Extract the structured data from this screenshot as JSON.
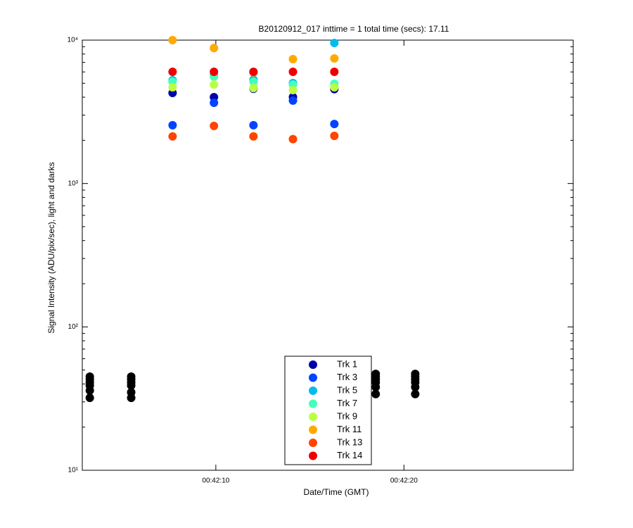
{
  "chart_data": {
    "type": "scatter",
    "title": "B20120912_017 inttime = 1 total time (secs): 17.11",
    "x_label": "Date/Time (GMT)",
    "y_label": "Signal Intensity (ADU/pix/sec), light and darks",
    "log_y": true,
    "xlim": [
      "00:42:02.9",
      "00:42:29.0"
    ],
    "xticks": [
      "00:42:10",
      "00:42:20"
    ],
    "ylim": [
      10,
      10000
    ],
    "yticks": [
      {
        "value": 10,
        "label": "10¹"
      },
      {
        "value": 100,
        "label": "10²"
      },
      {
        "value": 1000,
        "label": "10³"
      },
      {
        "value": 10000,
        "label": "10⁴"
      }
    ],
    "legend": "lower center",
    "series": [
      {
        "name": "Trk 1",
        "color": "#0000aa",
        "x": [
          "00:42:07.7",
          "00:42:09.9",
          "00:42:12.0",
          "00:42:14.1",
          "00:42:16.3"
        ],
        "values": [
          4285,
          4000,
          4580,
          4010,
          4550
        ]
      },
      {
        "name": "Trk 3",
        "color": "#0044ff",
        "x": [
          "00:42:07.7",
          "00:42:09.9",
          "00:42:12.0",
          "00:42:14.1",
          "00:42:16.3"
        ],
        "values": [
          2550,
          3655,
          2550,
          3785,
          2600
        ]
      },
      {
        "name": "Trk 5",
        "color": "#00bbee",
        "x": [
          "00:42:07.7",
          "00:42:09.9",
          "00:42:12.0",
          "00:42:14.1",
          "00:42:16.3"
        ],
        "values": [
          5250,
          5680,
          5300,
          5020,
          9560
        ]
      },
      {
        "name": "Trk 7",
        "color": "#44ffbb",
        "x": [
          "00:42:07.7",
          "00:42:09.9",
          "00:42:12.0",
          "00:42:14.1",
          "00:42:16.3"
        ],
        "values": [
          5130,
          5560,
          5130,
          4900,
          4960
        ]
      },
      {
        "name": "Trk 9",
        "color": "#bbff44",
        "x": [
          "00:42:07.7",
          "00:42:09.9",
          "00:42:12.0",
          "00:42:14.1",
          "00:42:16.3"
        ],
        "values": [
          4690,
          4900,
          4630,
          4480,
          4690
        ]
      },
      {
        "name": "Trk 11",
        "color": "#ffaa00",
        "x": [
          "00:42:07.7",
          "00:42:09.9",
          "00:42:12.0",
          "00:42:14.1",
          "00:42:16.3"
        ],
        "values": [
          10000,
          8800,
          5950,
          7370,
          7450
        ]
      },
      {
        "name": "Trk 13",
        "color": "#ff4400",
        "x": [
          "00:42:07.7",
          "00:42:09.9",
          "00:42:12.0",
          "00:42:14.1",
          "00:42:16.3"
        ],
        "values": [
          2130,
          2520,
          2130,
          2040,
          2150
        ]
      },
      {
        "name": "Trk 14",
        "color": "#ee0000",
        "x": [
          "00:42:07.7",
          "00:42:09.9",
          "00:42:12.0",
          "00:42:14.1",
          "00:42:16.3"
        ],
        "values": [
          6010,
          6010,
          6010,
          6010,
          6010
        ]
      },
      {
        "color": "#000000",
        "x": [
          "00:42:03.3",
          "00:42:03.3",
          "00:42:03.3",
          "00:42:03.3",
          "00:42:03.3",
          "00:42:03.3",
          "00:42:05.5",
          "00:42:05.5",
          "00:42:05.5",
          "00:42:05.5",
          "00:42:05.5",
          "00:42:05.5",
          "00:42:18.5",
          "00:42:18.5",
          "00:42:18.5",
          "00:42:18.5",
          "00:42:18.5",
          "00:42:18.5",
          "00:42:20.6",
          "00:42:20.6",
          "00:42:20.6",
          "00:42:20.6",
          "00:42:20.6",
          "00:42:20.6"
        ],
        "values": [
          45,
          43,
          41,
          39,
          36,
          32,
          45,
          43,
          41,
          39,
          35,
          32,
          47,
          45,
          43,
          41,
          38,
          34,
          47,
          45,
          43,
          41,
          38,
          34
        ]
      }
    ]
  }
}
